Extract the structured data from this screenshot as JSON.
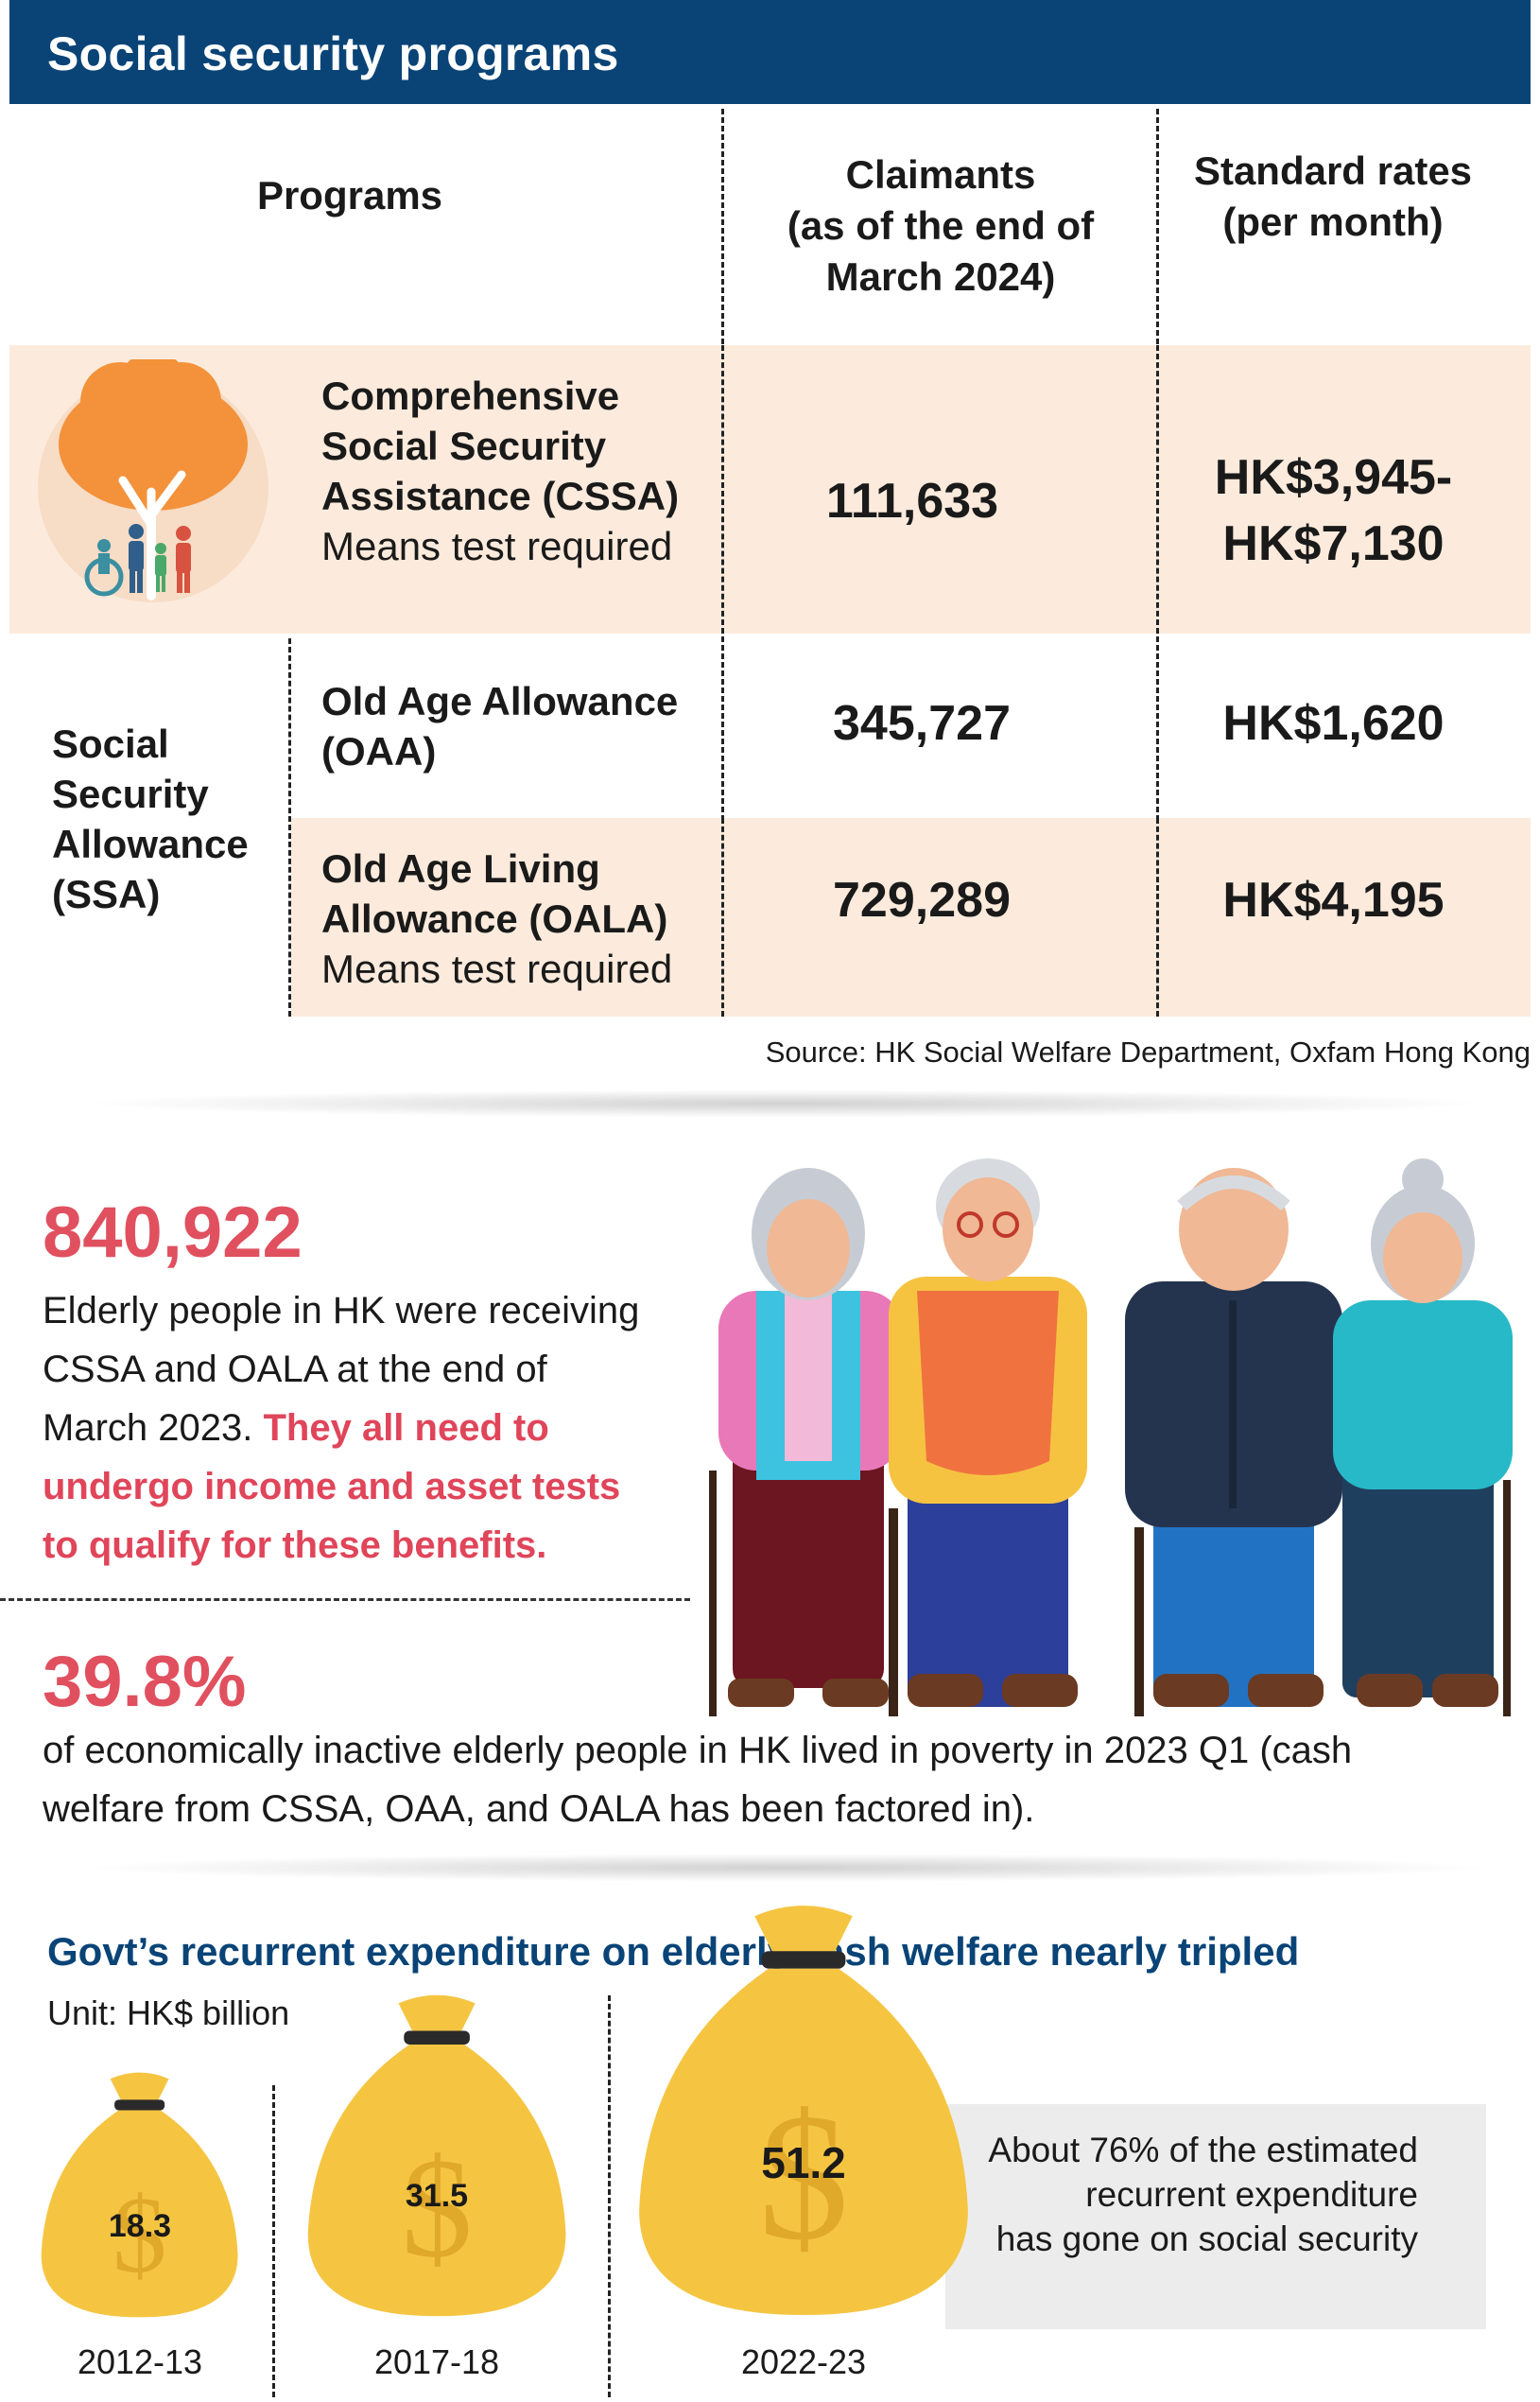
{
  "header": {
    "title": "Social security programs"
  },
  "table": {
    "col_headers": {
      "programs": "Programs",
      "claimants": [
        "Claimants",
        "(as of the end of",
        "March 2024)"
      ],
      "rates": [
        "Standard rates",
        "(per month)"
      ]
    },
    "rows": [
      {
        "name": [
          "Comprehensive",
          "Social Security",
          "Assistance (CSSA)"
        ],
        "note": "Means test required",
        "claimants": "111,633",
        "rate": [
          "HK$3,945-",
          "HK$7,130"
        ]
      },
      {
        "name": [
          "Old Age Allowance",
          "(OAA)"
        ],
        "claimants": "345,727",
        "rate": [
          "HK$1,620"
        ]
      },
      {
        "name": [
          "Old Age Living",
          "Allowance (OALA)"
        ],
        "note": "Means test required",
        "claimants": "729,289",
        "rate": [
          "HK$4,195"
        ]
      }
    ],
    "group_label": [
      "Social",
      "Security",
      "Allowance",
      "(SSA)"
    ],
    "source": "Source: HK Social Welfare Department, Oxfam Hong Kong"
  },
  "stats": {
    "stat1": {
      "number": "840,922",
      "lines": [
        "Elderly people in HK were receiving",
        "CSSA and OALA at the end of"
      ],
      "line3_plain": "March 2023. ",
      "line3_red": "They all need to",
      "red_lines": [
        "undergo income and asset tests",
        "to qualify for these benefits."
      ]
    },
    "stat2": {
      "number": "39.8%",
      "lines": [
        "of economically inactive elderly people in HK lived in poverty in 2023 Q1 (cash",
        "welfare from CSSA, OAA, and OALA has been factored in)."
      ]
    }
  },
  "expenditure": {
    "title": "Govt’s recurrent expenditure on elderly cash welfare nearly tripled",
    "unit": "Unit: HK$ billion",
    "note": [
      "About 76% of the estimated",
      "recurrent expenditure",
      "has gone on social security"
    ],
    "colors": {
      "bag": "#f5c542",
      "bag_dark": "#e0a92a",
      "tie": "#2a2a2a"
    }
  },
  "chart_data": {
    "type": "bar",
    "categories": [
      "2012-13",
      "2017-18",
      "2022-23"
    ],
    "values": [
      18.3,
      31.5,
      51.2
    ],
    "value_labels": [
      "18.3",
      "31.5",
      "51.2"
    ],
    "title": "Govt’s recurrent expenditure on elderly cash welfare nearly tripled",
    "ylabel": "Unit: HK$ billion"
  }
}
